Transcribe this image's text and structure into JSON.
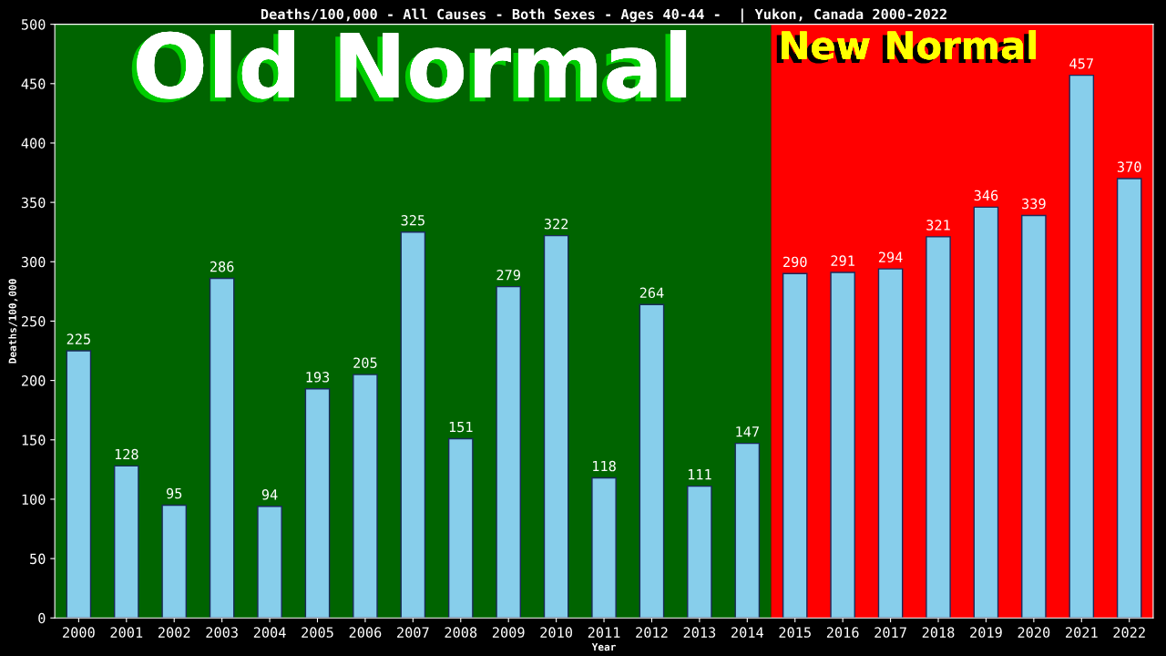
{
  "chart_data": {
    "type": "bar",
    "title": "Deaths/100,000 - All Causes - Both Sexes - Ages 40-44 -  | Yukon, Canada 2000-2022",
    "xlabel": "Year",
    "ylabel": "Deaths/100,000",
    "categories": [
      "2000",
      "2001",
      "2002",
      "2003",
      "2004",
      "2005",
      "2006",
      "2007",
      "2008",
      "2009",
      "2010",
      "2011",
      "2012",
      "2013",
      "2014",
      "2015",
      "2016",
      "2017",
      "2018",
      "2019",
      "2020",
      "2021",
      "2022"
    ],
    "values": [
      225,
      128,
      95,
      286,
      94,
      193,
      205,
      325,
      151,
      279,
      322,
      118,
      264,
      111,
      147,
      290,
      291,
      294,
      321,
      346,
      339,
      457,
      370
    ],
    "color": "#87ceeb",
    "ylim": [
      0,
      500
    ],
    "yticks": [
      0,
      50,
      100,
      150,
      200,
      250,
      300,
      350,
      400,
      450,
      500
    ],
    "grid": false,
    "legend": false,
    "data_labels": true,
    "bands": [
      {
        "axis": "x",
        "from": "2000",
        "to": "2014",
        "label": "Old Normal",
        "color": "#006400"
      },
      {
        "axis": "x",
        "from": "2015",
        "to": "2022",
        "label": "New Normal",
        "color": "#ff0000"
      }
    ]
  }
}
